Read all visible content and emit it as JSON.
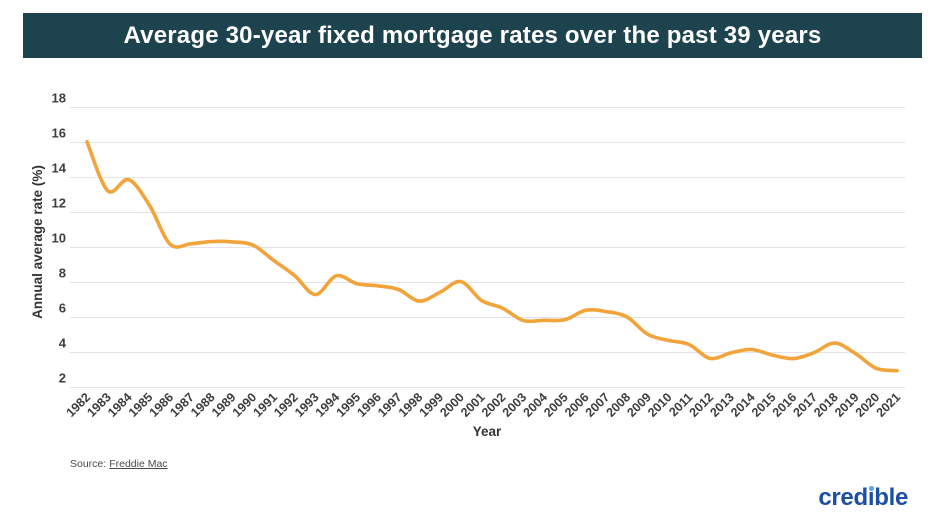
{
  "chart_data": {
    "type": "line",
    "title": "Average 30-year fixed mortgage rates over the past 39 years",
    "xlabel": "Year",
    "ylabel": "Annual average rate (%)",
    "ylim": [
      2,
      18
    ],
    "yticks": [
      2,
      4,
      6,
      8,
      10,
      12,
      14,
      16,
      18
    ],
    "grid": "horizontal",
    "legend": "none",
    "line_color": "#F2A43A",
    "grid_color": "#e4e4e6",
    "categories": [
      "1982",
      "1983",
      "1984",
      "1985",
      "1986",
      "1987",
      "1988",
      "1989",
      "1990",
      "1991",
      "1992",
      "1993",
      "1994",
      "1995",
      "1996",
      "1997",
      "1998",
      "1999",
      "2000",
      "2001",
      "2002",
      "2003",
      "2004",
      "2005",
      "2006",
      "2007",
      "2008",
      "2009",
      "2010",
      "2011",
      "2012",
      "2013",
      "2014",
      "2015",
      "2016",
      "2017",
      "2018",
      "2019",
      "2020",
      "2021"
    ],
    "series": [
      {
        "name": "Average 30-year fixed mortgage rate (%)",
        "values": [
          16.04,
          13.24,
          13.88,
          12.43,
          10.19,
          10.21,
          10.34,
          10.32,
          10.13,
          9.25,
          8.39,
          7.31,
          8.38,
          7.93,
          7.81,
          7.6,
          6.94,
          7.44,
          8.05,
          6.97,
          6.54,
          5.83,
          5.84,
          5.87,
          6.41,
          6.34,
          6.03,
          5.04,
          4.69,
          4.45,
          3.66,
          3.98,
          4.17,
          3.85,
          3.65,
          3.99,
          4.54,
          3.94,
          3.1,
          2.96
        ]
      }
    ]
  },
  "source": {
    "prefix": "Source:",
    "link_text": "Freddie Mac"
  },
  "logo": {
    "prefix": "cred",
    "stem": "ı",
    "suffix": "ble"
  },
  "colors": {
    "banner_bg": "#1d434e",
    "banner_text": "#ffffff",
    "line": "#F2A43A",
    "grid": "#e4e4e6",
    "tick": "#3e3e40",
    "credible_blue": "#1d4fa3",
    "credible_dot": "#5aa9e6"
  }
}
